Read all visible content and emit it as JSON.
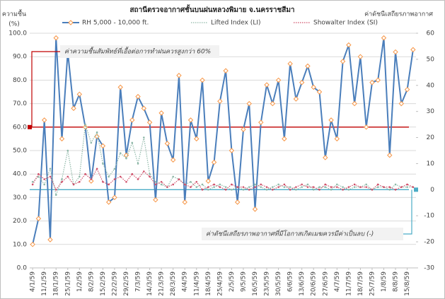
{
  "chart_data": {
    "type": "line",
    "title": "สถานีตรวจอากาศชั้นบนฝนหลวงพิมาย  จ.นครราชสีมา",
    "ylabel": "ความชื้น",
    "ylabel_unit": "(%)",
    "y2label": "ค่าดัชนีเสถียรภาพอากาศ",
    "categories": [
      "4/1/59",
      null,
      "11/1/59",
      null,
      "18/1/59",
      null,
      "25/1/59",
      null,
      "1/2/59",
      null,
      "8/2/59",
      null,
      "15/2/59",
      null,
      "22/2/59",
      null,
      "29/2/59",
      null,
      "7/3/59",
      null,
      "14/3/59",
      null,
      "21/3/59",
      null,
      "28/3/59",
      null,
      "4/4/59",
      null,
      "11/4/59",
      null,
      "18/4/59",
      null,
      "25/4/59",
      null,
      "2/5/59",
      null,
      "9/5/59",
      null,
      "16/5/59",
      null,
      "23/5/59",
      null,
      "30/5/59",
      null,
      "6/6/59",
      null,
      "13/6/59",
      null,
      "20/6/59",
      null,
      "27/6/59",
      null,
      "4/7/59",
      null,
      "11/7/59",
      null,
      "18/7/59",
      null,
      "25/7/59",
      null,
      "1/8/59",
      null,
      "8/8/59",
      null,
      "15/8/59",
      null
    ],
    "series": [
      {
        "name": "RH 5,000 - 10,000 ft.",
        "color": "#4a7ebb",
        "marker_color": "#f79646",
        "axis": "y",
        "values": [
          10,
          21,
          63,
          12,
          98,
          55,
          92,
          68,
          74,
          60,
          37,
          56,
          52,
          28,
          30,
          77,
          48,
          63,
          73,
          68,
          62,
          29,
          66,
          53,
          46,
          82,
          28,
          63,
          55,
          80,
          37,
          45,
          71,
          84,
          50,
          28,
          59,
          70,
          25,
          62,
          78,
          70,
          80,
          55,
          87,
          72,
          79,
          86,
          77,
          75,
          47,
          63,
          55,
          88,
          95,
          70,
          90,
          60,
          79,
          80,
          98,
          48,
          92,
          70,
          76,
          93
        ]
      },
      {
        "name": "Lifted Index (LI)",
        "color": "#8fb8a8",
        "axis": "y2",
        "values": [
          3,
          5,
          2,
          8,
          -2,
          4,
          15,
          2,
          5,
          25,
          18,
          22,
          10,
          5,
          8,
          14,
          12,
          18,
          10,
          20,
          6,
          3,
          2,
          1,
          5,
          4,
          2,
          3,
          1,
          2,
          0,
          1,
          2,
          1,
          0,
          1,
          0,
          1,
          2,
          1,
          0,
          1,
          2,
          1,
          1,
          0,
          1,
          2,
          0,
          1,
          1,
          0,
          2,
          1,
          0,
          1,
          1,
          2,
          0,
          1,
          1,
          0,
          2,
          1,
          1,
          1
        ]
      },
      {
        "name": "Showalter Index (SI)",
        "color": "#d0506a",
        "axis": "y2",
        "values": [
          2,
          6,
          4,
          5,
          0,
          3,
          5,
          2,
          3,
          6,
          4,
          8,
          3,
          2,
          4,
          5,
          3,
          6,
          4,
          7,
          5,
          2,
          3,
          1,
          2,
          4,
          2,
          1,
          3,
          0,
          1,
          2,
          1,
          0,
          2,
          1,
          1,
          0,
          1,
          2,
          1,
          0,
          1,
          2,
          0,
          1,
          2,
          1,
          1,
          0,
          2,
          1,
          1,
          0,
          1,
          2,
          1,
          1,
          0,
          2,
          1,
          1,
          0,
          1,
          2,
          1
        ]
      }
    ],
    "ylim": [
      0,
      100
    ],
    "yticks": [
      {
        "value": 0,
        "label": "0.0"
      },
      {
        "value": 10,
        "label": "10.0"
      },
      {
        "value": 20,
        "label": "20.0"
      },
      {
        "value": 30,
        "label": "30.0"
      },
      {
        "value": 40,
        "label": "40.0"
      },
      {
        "value": 50,
        "label": "50.0"
      },
      {
        "value": 60,
        "label": "60.0"
      },
      {
        "value": 70,
        "label": "70.0"
      },
      {
        "value": 80,
        "label": "80.0"
      },
      {
        "value": 90,
        "label": "90.0"
      },
      {
        "value": 100,
        "label": "100.0"
      }
    ],
    "y2lim": [
      -30,
      60
    ],
    "y2ticks": [
      -30,
      -20,
      -10,
      0,
      10,
      20,
      30,
      40,
      50,
      60
    ],
    "grid": true,
    "reference_lines": [
      {
        "axis": "y",
        "value": 60,
        "color": "#c00000",
        "label": "ค่าความชื้นสัมพัทธ์ที่เอื้อต่อการทำฝนควรสูงกว่า 60%"
      },
      {
        "axis": "y2",
        "value": 0,
        "color": "#4bacc6",
        "label": "ค่าดัชนีเสถียรภาพอากาศที่มีโอกาสเกิดเมฆควรมีค่าเป็นลบ (-)"
      }
    ]
  }
}
